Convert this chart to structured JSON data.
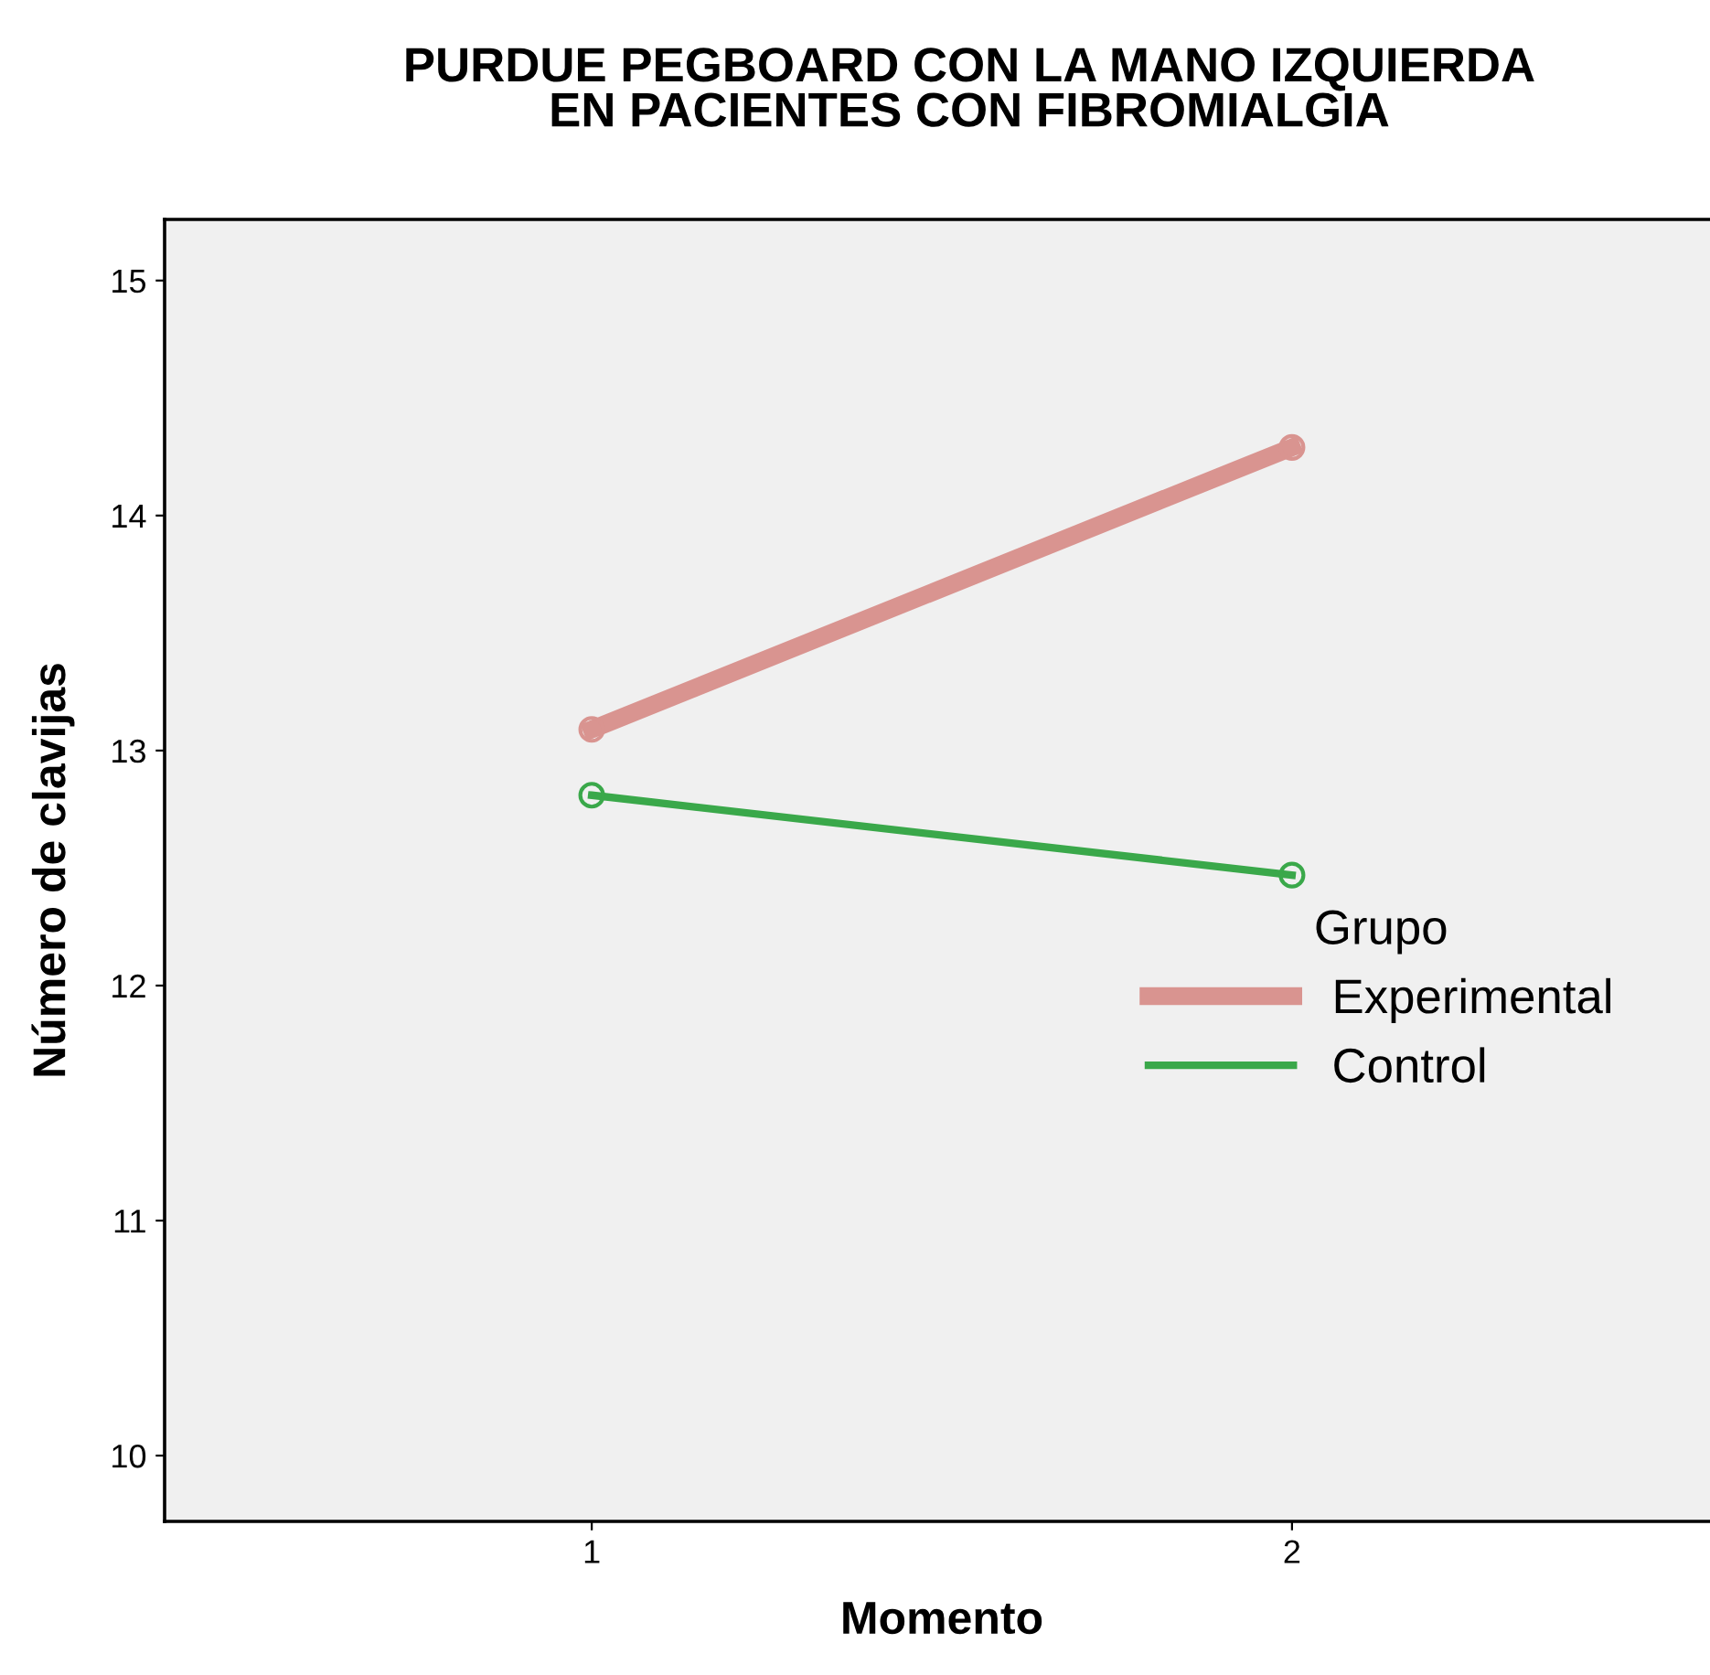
{
  "chart_data": {
    "type": "line",
    "title": "PURDUE PEGBOARD CON LA MANO IZQUIERDA\nEN PACIENTES CON FIBROMIALGIA",
    "xlabel": "Momento",
    "ylabel": "Número de clavijas",
    "legend_title": "Grupo",
    "categories": [
      "1",
      "2"
    ],
    "series": [
      {
        "name": "Experimental",
        "color": "#d99490",
        "values": [
          13.09,
          14.29
        ]
      },
      {
        "name": "Control",
        "color": "#3aa84a",
        "values": [
          12.81,
          12.47
        ]
      }
    ],
    "ylim": [
      9.72,
      15.26
    ],
    "yticks": [
      10,
      11,
      12,
      13,
      14,
      15
    ],
    "marker": "circle",
    "line_style": "solid",
    "grid": false,
    "legend": "right"
  }
}
